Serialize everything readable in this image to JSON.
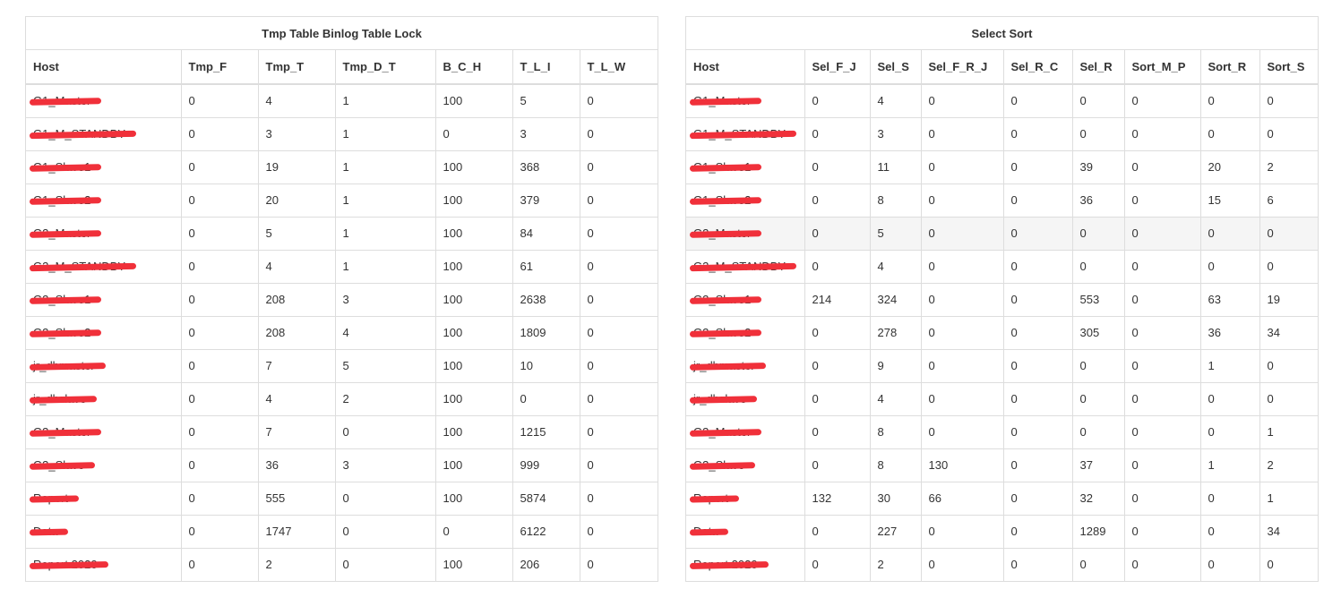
{
  "colors": {
    "border": "#dddddd",
    "text": "#333333",
    "redaction": "#f0303a",
    "row_hover": "#f5f5f5"
  },
  "left": {
    "title": "Tmp Table Binlog Table Lock",
    "headers": [
      "Host",
      "Tmp_F",
      "Tmp_T",
      "Tmp_D_T",
      "B_C_H",
      "T_L_I",
      "T_L_W"
    ],
    "rows": [
      [
        "G1_Master",
        "0",
        "4",
        "1",
        "100",
        "5",
        "0"
      ],
      [
        "G1_M_STANDBY",
        "0",
        "3",
        "1",
        "0",
        "3",
        "0"
      ],
      [
        "G1_Slave1",
        "0",
        "19",
        "1",
        "100",
        "368",
        "0"
      ],
      [
        "G1_Slave2",
        "0",
        "20",
        "1",
        "100",
        "379",
        "0"
      ],
      [
        "G2_Master",
        "0",
        "5",
        "1",
        "100",
        "84",
        "0"
      ],
      [
        "G2_M_STANDBY",
        "0",
        "4",
        "1",
        "100",
        "61",
        "0"
      ],
      [
        "G2_Slave1",
        "0",
        "208",
        "3",
        "100",
        "2638",
        "0"
      ],
      [
        "G2_Slave2",
        "0",
        "208",
        "4",
        "100",
        "1809",
        "0"
      ],
      [
        "jr_dbmaster",
        "0",
        "7",
        "5",
        "100",
        "10",
        "0"
      ],
      [
        "jr_dbslave",
        "0",
        "4",
        "2",
        "100",
        "0",
        "0"
      ],
      [
        "G3_Master",
        "0",
        "7",
        "0",
        "100",
        "1215",
        "0"
      ],
      [
        "G3_Slave",
        "0",
        "36",
        "3",
        "100",
        "999",
        "0"
      ],
      [
        "Report",
        "0",
        "555",
        "0",
        "100",
        "5874",
        "0"
      ],
      [
        "Data",
        "0",
        "1747",
        "0",
        "0",
        "6122",
        "0"
      ],
      [
        "Report 2020",
        "0",
        "2",
        "0",
        "100",
        "206",
        "0"
      ]
    ]
  },
  "right": {
    "title": "Select Sort",
    "headers": [
      "Host",
      "Sel_F_J",
      "Sel_S",
      "Sel_F_R_J",
      "Sel_R_C",
      "Sel_R",
      "Sort_M_P",
      "Sort_R",
      "Sort_S"
    ],
    "rows": [
      [
        "G1_Master",
        "0",
        "4",
        "0",
        "0",
        "0",
        "0",
        "0",
        "0"
      ],
      [
        "G1_M_STANDBY",
        "0",
        "3",
        "0",
        "0",
        "0",
        "0",
        "0",
        "0"
      ],
      [
        "G1_Slave1",
        "0",
        "11",
        "0",
        "0",
        "39",
        "0",
        "20",
        "2"
      ],
      [
        "G1_Slave2",
        "0",
        "8",
        "0",
        "0",
        "36",
        "0",
        "15",
        "6"
      ],
      [
        "G2_Master",
        "0",
        "5",
        "0",
        "0",
        "0",
        "0",
        "0",
        "0"
      ],
      [
        "G2_M_STANDBY",
        "0",
        "4",
        "0",
        "0",
        "0",
        "0",
        "0",
        "0"
      ],
      [
        "G2_Slave1",
        "214",
        "324",
        "0",
        "0",
        "553",
        "0",
        "63",
        "19"
      ],
      [
        "G2_Slave2",
        "0",
        "278",
        "0",
        "0",
        "305",
        "0",
        "36",
        "34"
      ],
      [
        "jr_dbmaster",
        "0",
        "9",
        "0",
        "0",
        "0",
        "0",
        "1",
        "0"
      ],
      [
        "jr_dbslave",
        "0",
        "4",
        "0",
        "0",
        "0",
        "0",
        "0",
        "0"
      ],
      [
        "G3_Master",
        "0",
        "8",
        "0",
        "0",
        "0",
        "0",
        "0",
        "1"
      ],
      [
        "G3_Slave",
        "0",
        "8",
        "130",
        "0",
        "37",
        "0",
        "1",
        "2"
      ],
      [
        "Report",
        "132",
        "30",
        "66",
        "0",
        "32",
        "0",
        "0",
        "1"
      ],
      [
        "Data",
        "0",
        "227",
        "0",
        "0",
        "1289",
        "0",
        "0",
        "34"
      ],
      [
        "Report 2020",
        "0",
        "2",
        "0",
        "0",
        "0",
        "0",
        "0",
        "0"
      ]
    ]
  }
}
